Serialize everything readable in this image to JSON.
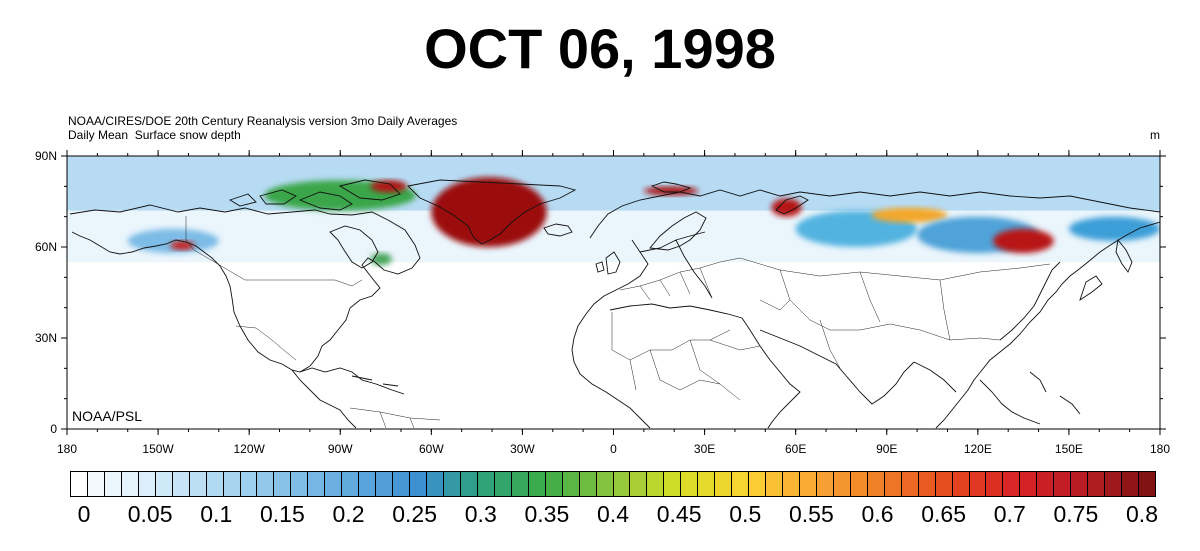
{
  "title": "OCT 06, 1998",
  "subtitle_line1": "NOAA/CIRES/DOE 20th Century Reanalysis version 3mo Daily Averages",
  "subtitle_line2": "Daily Mean  Surface snow depth",
  "units": "m",
  "credit": "NOAA/PSL",
  "map": {
    "projection": "cylindrical equidistant",
    "lon_range": [
      -180,
      180
    ],
    "lat_range": [
      0,
      90
    ],
    "lat_ticks": [
      {
        "lat": 90,
        "label": "90N"
      },
      {
        "lat": 60,
        "label": "60N"
      },
      {
        "lat": 30,
        "label": "30N"
      },
      {
        "lat": 0,
        "label": "0"
      }
    ],
    "lon_ticks": [
      {
        "lon": -180,
        "label": "180"
      },
      {
        "lon": -150,
        "label": "150W"
      },
      {
        "lon": -120,
        "label": "120W"
      },
      {
        "lon": -90,
        "label": "90W"
      },
      {
        "lon": -60,
        "label": "60W"
      },
      {
        "lon": -30,
        "label": "30W"
      },
      {
        "lon": 0,
        "label": "0"
      },
      {
        "lon": 30,
        "label": "30E"
      },
      {
        "lon": 60,
        "label": "60E"
      },
      {
        "lon": 90,
        "label": "90E"
      },
      {
        "lon": 120,
        "label": "120E"
      },
      {
        "lon": 150,
        "label": "150E"
      },
      {
        "lon": 180,
        "label": "180"
      }
    ],
    "land_color": "#ffffff",
    "low_snow_color": "#eaf5fc",
    "snow_regions": [
      {
        "name": "arctic-band",
        "lon": [
          -180,
          180
        ],
        "lat": [
          72,
          90
        ],
        "level": 0.12,
        "color": "#a9d5f1"
      },
      {
        "name": "greenland",
        "lon": [
          -60,
          -22
        ],
        "lat": [
          60,
          83
        ],
        "level": 0.8,
        "color": "#9b1111"
      },
      {
        "name": "canadian-arctic-islands",
        "lon": [
          -115,
          -65
        ],
        "lat": [
          72,
          82
        ],
        "level": 0.35,
        "color": "#3aa64a"
      },
      {
        "name": "ellesmere-peak",
        "lon": [
          -80,
          -68
        ],
        "lat": [
          78,
          82
        ],
        "level": 0.8,
        "color": "#b01212"
      },
      {
        "name": "alaska",
        "lon": [
          -160,
          -130
        ],
        "lat": [
          58,
          66
        ],
        "level": 0.2,
        "color": "#7dbce6"
      },
      {
        "name": "alaska-range-peak",
        "lon": [
          -146,
          -138
        ],
        "lat": [
          59,
          62
        ],
        "level": 0.7,
        "color": "#c8201c"
      },
      {
        "name": "hudson-bay-east",
        "lon": [
          -80,
          -73
        ],
        "lat": [
          54,
          58
        ],
        "level": 0.3,
        "color": "#4aa55c"
      },
      {
        "name": "svalbard",
        "lon": [
          10,
          28
        ],
        "lat": [
          77,
          80
        ],
        "level": 0.75,
        "color": "#a81414"
      },
      {
        "name": "novaya-zemlya",
        "lon": [
          52,
          62
        ],
        "lat": [
          70,
          76
        ],
        "level": 0.7,
        "color": "#b51717"
      },
      {
        "name": "siberia-west",
        "lon": [
          60,
          100
        ],
        "lat": [
          60,
          72
        ],
        "level": 0.3,
        "color": "#52b3e0"
      },
      {
        "name": "taymyr",
        "lon": [
          85,
          110
        ],
        "lat": [
          68,
          73
        ],
        "level": 0.55,
        "color": "#f3a72b"
      },
      {
        "name": "yakutia",
        "lon": [
          100,
          140
        ],
        "lat": [
          58,
          70
        ],
        "level": 0.3,
        "color": "#4fa3d8"
      },
      {
        "name": "verkhoyansk-kolyma-peak",
        "lon": [
          125,
          145
        ],
        "lat": [
          58,
          66
        ],
        "level": 0.75,
        "color": "#b81818"
      },
      {
        "name": "chukotka",
        "lon": [
          150,
          180
        ],
        "lat": [
          62,
          70
        ],
        "level": 0.3,
        "color": "#3d9fd8"
      }
    ]
  },
  "colorbar": {
    "min": 0,
    "max": 0.8,
    "step": 0.0125,
    "label_values": [
      "0",
      "0.05",
      "0.1",
      "0.15",
      "0.2",
      "0.25",
      "0.3",
      "0.35",
      "0.4",
      "0.45",
      "0.5",
      "0.55",
      "0.6",
      "0.65",
      "0.7",
      "0.75",
      "0.8"
    ],
    "color_stops": [
      {
        "v": 0,
        "c": "#ffffff"
      },
      {
        "v": 0.05,
        "c": "#e0f1fb"
      },
      {
        "v": 0.12,
        "c": "#a6d4f0"
      },
      {
        "v": 0.2,
        "c": "#66ade0"
      },
      {
        "v": 0.26,
        "c": "#3b8fcf"
      },
      {
        "v": 0.3,
        "c": "#2ea17f"
      },
      {
        "v": 0.35,
        "c": "#3cab48"
      },
      {
        "v": 0.4,
        "c": "#8dc63f"
      },
      {
        "v": 0.45,
        "c": "#d6df26"
      },
      {
        "v": 0.5,
        "c": "#fbd234"
      },
      {
        "v": 0.55,
        "c": "#f7a433"
      },
      {
        "v": 0.6,
        "c": "#f07c27"
      },
      {
        "v": 0.65,
        "c": "#e5461f"
      },
      {
        "v": 0.7,
        "c": "#d72227"
      },
      {
        "v": 0.75,
        "c": "#b51c22"
      },
      {
        "v": 0.8,
        "c": "#7a1111"
      }
    ]
  }
}
